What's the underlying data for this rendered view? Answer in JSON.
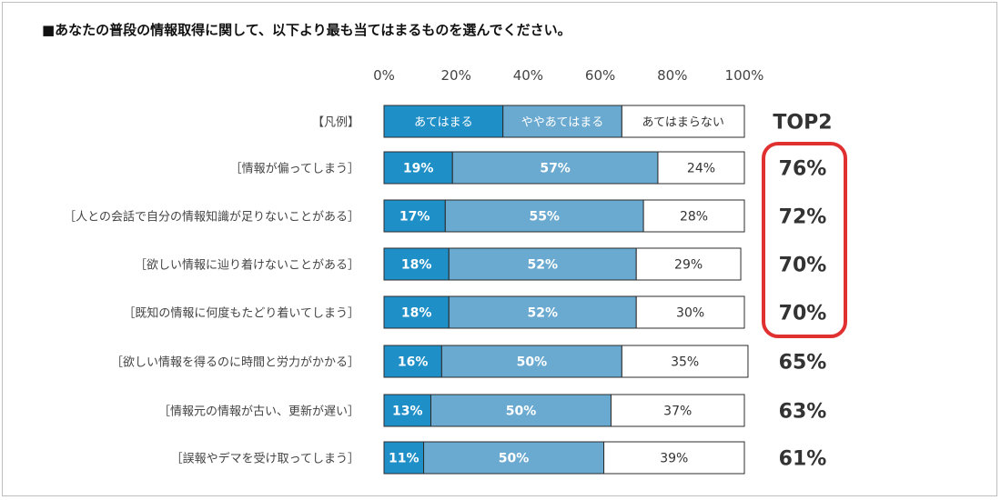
{
  "question": "■あなたの普段の情報取得に関して、以下より最も当てはまるものを選んでください。",
  "legend": {
    "label": "【凡例】",
    "items": [
      "あてはまる",
      "ややあてはまる",
      "あてはまらない"
    ]
  },
  "top2_header": "TOP2",
  "colors": {
    "series1": "#1f8fc8",
    "series2": "#6aa9d0",
    "series3": "#ffffff",
    "border": "#2b2b2b",
    "highlight": "#e03030"
  },
  "chart_data": {
    "type": "bar",
    "orientation": "horizontal",
    "stacked": true,
    "xlim": [
      0,
      100
    ],
    "ticks": [
      "0%",
      "20%",
      "40%",
      "60%",
      "80%",
      "100%"
    ],
    "tick_values": [
      0,
      20,
      40,
      60,
      80,
      100
    ],
    "categories": [
      "［情報が偏ってしまう］",
      "［人との会話で自分の情報知識が足りないことがある］",
      "［欲しい情報に辿り着けないことがある］",
      "［既知の情報に何度もたどり着いてしまう］",
      "［欲しい情報を得るのに時間と労力がかかる］",
      "［情報元の情報が古い、更新が遅い］",
      "［誤報やデマを受け取ってしまう］"
    ],
    "series": [
      {
        "name": "あてはまる",
        "values": [
          19,
          17,
          18,
          18,
          16,
          13,
          11
        ]
      },
      {
        "name": "ややあてはまる",
        "values": [
          57,
          55,
          52,
          52,
          50,
          50,
          50
        ]
      },
      {
        "name": "あてはまらない",
        "values": [
          24,
          28,
          29,
          30,
          35,
          37,
          39
        ]
      }
    ],
    "top2": [
      "76%",
      "72%",
      "70%",
      "70%",
      "65%",
      "63%",
      "61%"
    ],
    "legend_values": [
      33,
      33,
      34
    ],
    "highlighted_rows": [
      0,
      1,
      2,
      3
    ]
  }
}
